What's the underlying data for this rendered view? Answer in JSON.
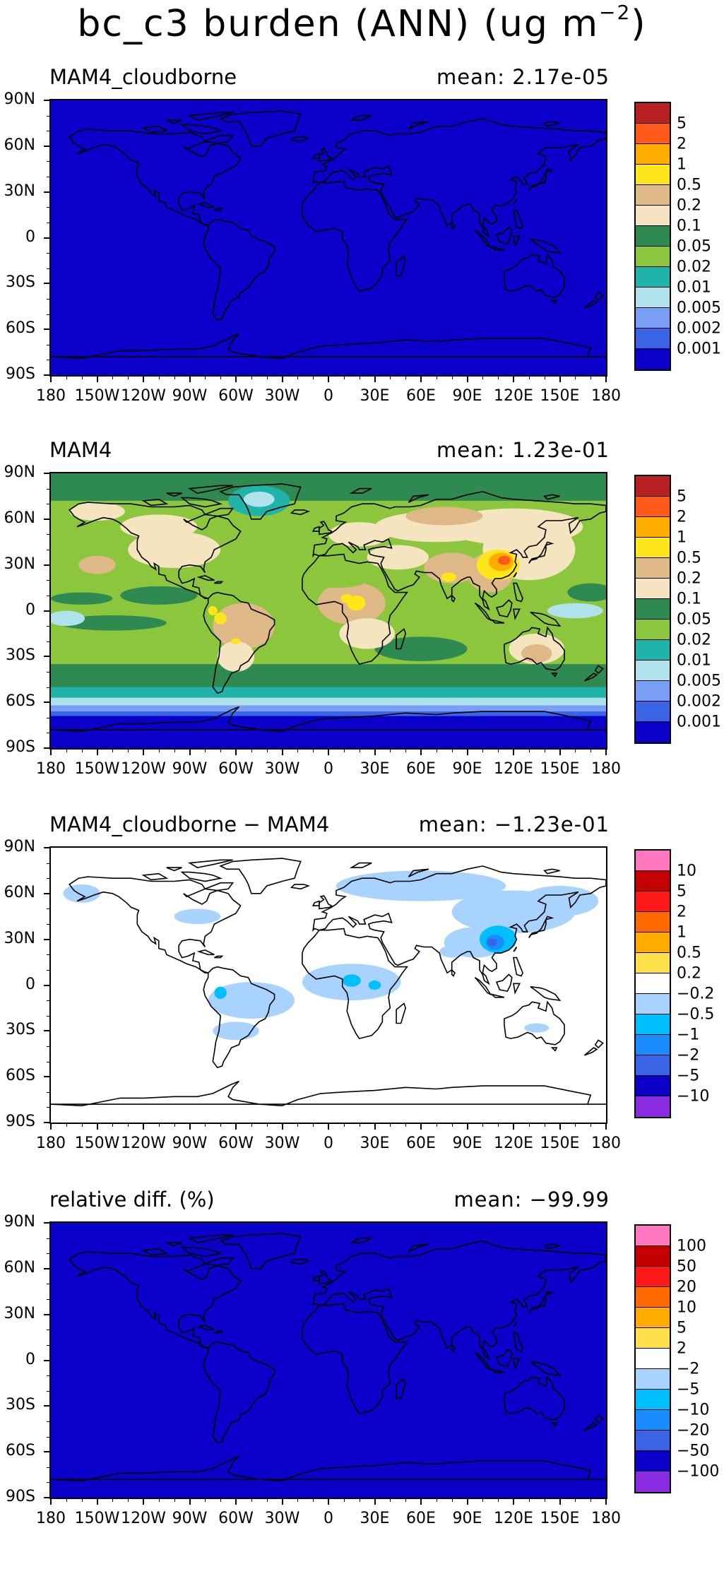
{
  "title": "bc_c3 burden (ANN) (ug m",
  "title_sup": "−2",
  "x_labels": [
    "180",
    "150W",
    "120W",
    "90W",
    "60W",
    "30W",
    "0",
    "30E",
    "60E",
    "90E",
    "120E",
    "150E",
    "180"
  ],
  "y_labels": [
    "90N",
    "60N",
    "30N",
    "0",
    "30S",
    "60S",
    "90S"
  ],
  "colors": {
    "burden": [
      "#0a00c9",
      "#3a63e6",
      "#7a9df5",
      "#b0e2ec",
      "#1fb3a9",
      "#8bc63d",
      "#2f8a52",
      "#f5e4c0",
      "#deb887",
      "#ffe61a",
      "#ffad00",
      "#ff5a1a",
      "#b82121"
    ],
    "diff": [
      "#8a2be2",
      "#0a00c9",
      "#3a63e6",
      "#1a8cff",
      "#00bfff",
      "#a8d3ff",
      "#ffffff",
      "#ffe04a",
      "#ffab00",
      "#ff6a00",
      "#ff1a1a",
      "#c40000",
      "#ff78bf"
    ],
    "land_outline": "#000000"
  },
  "panels": [
    {
      "title": "MAM4_cloudborne",
      "mean": "mean: 2.17e-05",
      "field": "uniform",
      "colorbar_labels": [
        "0.001",
        "0.002",
        "0.005",
        "0.01",
        "0.02",
        "0.05",
        "0.1",
        "0.2",
        "0.5",
        "1",
        "2",
        "5"
      ]
    },
    {
      "title": "MAM4",
      "mean": "mean: 1.23e-01",
      "field": "burden",
      "colorbar_labels": [
        "0.001",
        "0.002",
        "0.005",
        "0.01",
        "0.02",
        "0.05",
        "0.1",
        "0.2",
        "0.5",
        "1",
        "2",
        "5"
      ]
    },
    {
      "title": "MAM4_cloudborne − MAM4",
      "mean": "mean: −1.23e-01",
      "field": "diff",
      "colorbar_labels": [
        "−10",
        "−5",
        "−2",
        "−1",
        "−0.5",
        "−0.2",
        "0.2",
        "0.5",
        "1",
        "2",
        "5",
        "10"
      ]
    },
    {
      "title": "relative diff. (%)",
      "mean": "mean: −99.99",
      "field": "uniform",
      "colorbar_labels": [
        "−100",
        "−50",
        "−20",
        "−10",
        "−5",
        "−2",
        "2",
        "5",
        "10",
        "20",
        "50",
        "100"
      ]
    }
  ]
}
